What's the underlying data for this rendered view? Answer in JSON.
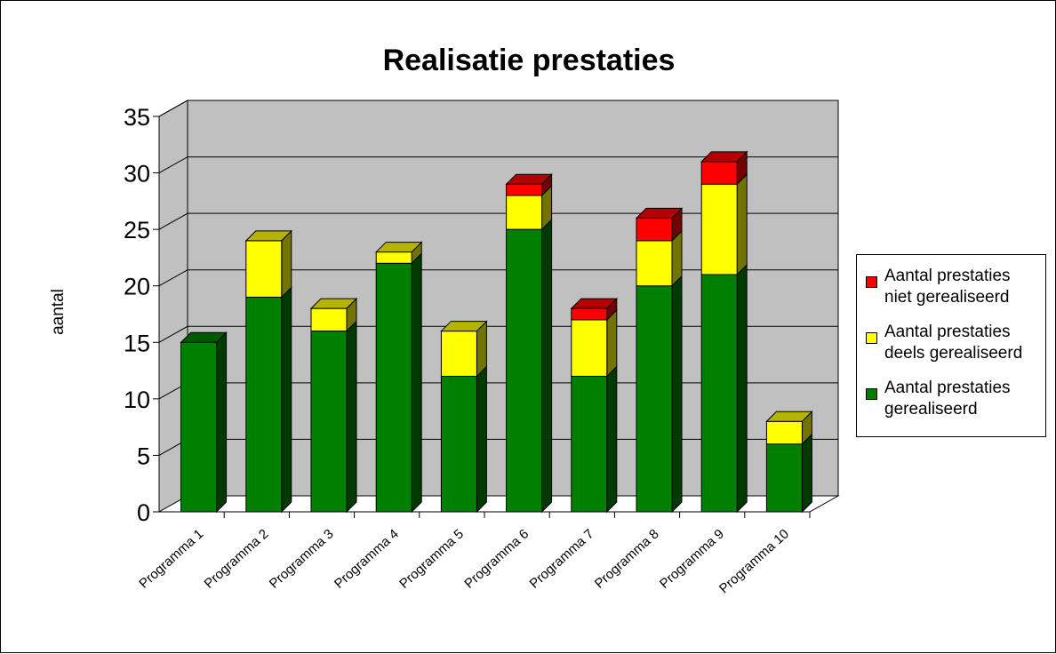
{
  "chart_data": {
    "type": "bar",
    "stacked": true,
    "three_d": true,
    "title": "Realisatie prestaties",
    "ylabel": "aantal",
    "xlabel": "",
    "ylim": [
      0,
      35
    ],
    "yticks": [
      0,
      5,
      10,
      15,
      20,
      25,
      30,
      35
    ],
    "grid": true,
    "legend_position": "right",
    "categories": [
      "Programma 1",
      "Programma 2",
      "Programma 3",
      "Programma 4",
      "Programma 5",
      "Programma 6",
      "Programma 7",
      "Programma 8",
      "Programma 9",
      "Programma 10"
    ],
    "series": [
      {
        "name": "Aantal prestaties gerealiseerd",
        "values": [
          15,
          19,
          16,
          22,
          12,
          25,
          12,
          20,
          21,
          6
        ],
        "color": "#008000"
      },
      {
        "name": "Aantal prestaties deels gerealiseerd",
        "values": [
          0,
          5,
          2,
          1,
          4,
          3,
          5,
          4,
          8,
          2
        ],
        "color": "#FFFF00"
      },
      {
        "name": "Aantal prestaties niet gerealiseerd",
        "values": [
          0,
          0,
          0,
          0,
          0,
          1,
          1,
          2,
          2,
          0
        ],
        "color": "#FF0000"
      }
    ],
    "legend": [
      {
        "label_line1": "Aantal prestaties",
        "label_line2": "niet gerealiseerd",
        "color": "#FF0000"
      },
      {
        "label_line1": "Aantal prestaties",
        "label_line2": "deels gerealiseerd",
        "color": "#FFFF00"
      },
      {
        "label_line1": "Aantal prestaties",
        "label_line2": "gerealiseerd",
        "color": "#008000"
      }
    ],
    "wall_color": "#C0C0C0"
  }
}
